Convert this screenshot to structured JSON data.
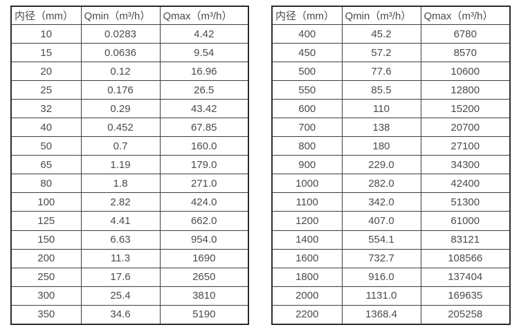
{
  "page": {
    "background_color": "#ffffff",
    "text_color": "#4a4a4a",
    "border_color": "#2b2b2b"
  },
  "chart_data": [
    {
      "type": "table",
      "name": "flow-spec-table-small-diameters",
      "columns": [
        "内径（mm）",
        "Qmin（m³/h）",
        "Qmax（m³/h）"
      ],
      "rows": [
        [
          "10",
          "0.0283",
          "4.42"
        ],
        [
          "15",
          "0.0636",
          "9.54"
        ],
        [
          "20",
          "0.12",
          "16.96"
        ],
        [
          "25",
          "0.176",
          "26.5"
        ],
        [
          "32",
          "0.29",
          "43.42"
        ],
        [
          "40",
          "0.452",
          "67.85"
        ],
        [
          "50",
          "0.7",
          "160.0"
        ],
        [
          "65",
          "1.19",
          "179.0"
        ],
        [
          "80",
          "1.8",
          "271.0"
        ],
        [
          "100",
          "2.82",
          "424.0"
        ],
        [
          "125",
          "4.41",
          "662.0"
        ],
        [
          "150",
          "6.63",
          "954.0"
        ],
        [
          "200",
          "11.3",
          "1690"
        ],
        [
          "250",
          "17.6",
          "2650"
        ],
        [
          "300",
          "25.4",
          "3810"
        ],
        [
          "350",
          "34.6",
          "5190"
        ]
      ]
    },
    {
      "type": "table",
      "name": "flow-spec-table-large-diameters",
      "columns": [
        "内径（mm）",
        "Qmin（m³/h）",
        "Qmax（m³/h）"
      ],
      "rows": [
        [
          "400",
          "45.2",
          "6780"
        ],
        [
          "450",
          "57.2",
          "8570"
        ],
        [
          "500",
          "77.6",
          "10600"
        ],
        [
          "550",
          "85.5",
          "12800"
        ],
        [
          "600",
          "110",
          "15200"
        ],
        [
          "700",
          "138",
          "20700"
        ],
        [
          "800",
          "180",
          "27100"
        ],
        [
          "900",
          "229.0",
          "34300"
        ],
        [
          "1000",
          "282.0",
          "42400"
        ],
        [
          "1100",
          "342.0",
          "51300"
        ],
        [
          "1200",
          "407.0",
          "61000"
        ],
        [
          "1400",
          "554.1",
          "83121"
        ],
        [
          "1600",
          "732.7",
          "108566"
        ],
        [
          "1800",
          "916.0",
          "137404"
        ],
        [
          "2000",
          "1131.0",
          "169635"
        ],
        [
          "2200",
          "1368.4",
          "205258"
        ]
      ]
    }
  ]
}
